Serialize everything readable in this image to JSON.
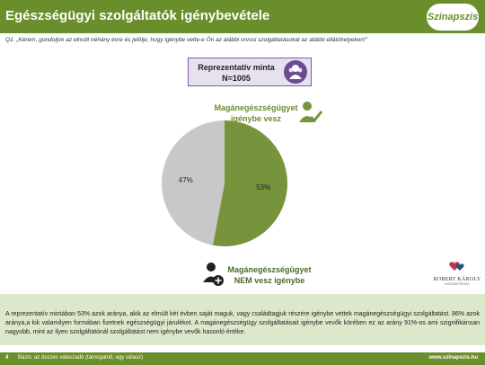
{
  "header": {
    "title": "Egészségügyi szolgáltatók igénybevétele",
    "logo_text": "Szinapszis"
  },
  "question": "Q1. „Kérem, gondoljon az elmúlt néhány évre és jelölje, hogy igénybe vette-e Ön az alábbi orvosi szolgáltatásokat az alábbi ellátóhelyeken!\"",
  "sample": {
    "line1": "Reprezentatív minta",
    "line2": "N=1005"
  },
  "labels": {
    "private_line1": "Magánegészségügyet",
    "private_line2": "igénybe vesz",
    "notprivate_line1": "Magánegészségügyet",
    "notprivate_line2": "NEM vesz igénybe"
  },
  "chart_data": {
    "type": "pie",
    "slices": [
      {
        "label": "Magánegészségügyet igénybe vesz",
        "value": 53,
        "display": "53%",
        "color": "#77933c"
      },
      {
        "label": "Magánegészségügyet NEM vesz igénybe",
        "value": 47,
        "display": "47%",
        "color": "#c8c8c8"
      }
    ]
  },
  "brand": {
    "name": "ROBERT KÁROLY",
    "sub": "MAGÁNKÓRHÁZ"
  },
  "summary": "A reprezentatív mintában 53% azok aránya, akik az elmúlt két évben saját maguk, vagy családtagjuk részére igénybe vettek magánegészségügyi szolgáltatást. 86% azok aránya,a kik valamilyen formában fizetnek egészségügyi járulékot. A magánegészségügy szolgáltatásait igénybe vevők körében ez az arány 91%-os ami szignifikánsan nagyobb, mint az ilyen szolgáltatónál szolgáltatást nem igénybe vevők hasonló értéke.",
  "footer": {
    "page": "4",
    "basis": "Bázis: az összes válaszadó (támogatott, egy válasz)",
    "url": "www.szinapszis.hu"
  },
  "colors": {
    "brand_green": "#6a8e2b",
    "summary_bg": "#dde8cb",
    "sample_purple": "#6b4b91"
  }
}
